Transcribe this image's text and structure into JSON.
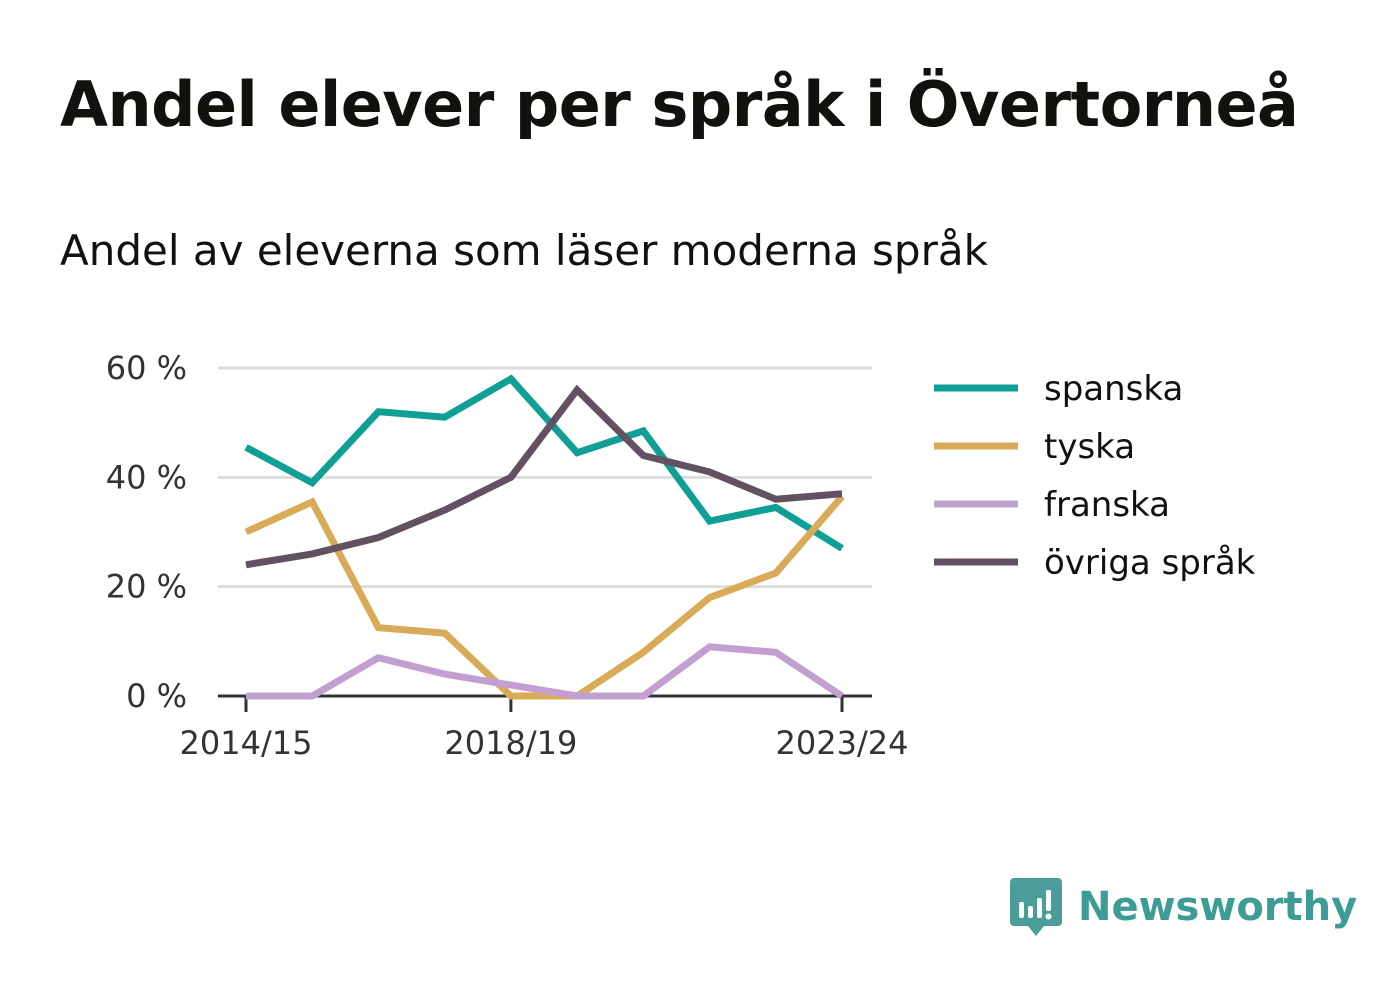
{
  "title": "Andel elever per språk i Övertorneå",
  "subtitle": "Andel av eleverna som läser moderna språk",
  "brand": {
    "name": "Newsworthy",
    "icon": "newsworthy-logo-icon",
    "color": "#3d9c96"
  },
  "chart_data": {
    "type": "line",
    "title": "Andel elever per språk i Övertorneå",
    "subtitle": "Andel av eleverna som läser moderna språk",
    "xlabel": "",
    "ylabel": "",
    "x": [
      "2014/15",
      "2015/16",
      "2016/17",
      "2017/18",
      "2018/19",
      "2019/20",
      "2020/21",
      "2021/22",
      "2022/23",
      "2023/24"
    ],
    "x_tick_labels": [
      "2014/15",
      "2018/19",
      "2023/24"
    ],
    "y_ticks": [
      0,
      20,
      40,
      60
    ],
    "y_tick_labels": [
      "0 %",
      "20 %",
      "40 %",
      "60 %"
    ],
    "ylim": [
      0,
      60
    ],
    "grid": true,
    "legend_position": "right",
    "series": [
      {
        "name": "spanska",
        "color": "#0f9f94",
        "values": [
          45.5,
          39,
          52,
          51,
          58,
          44.5,
          48.5,
          32,
          34.5,
          27
        ]
      },
      {
        "name": "tyska",
        "color": "#d9ab58",
        "values": [
          30,
          35.5,
          12.5,
          11.5,
          0,
          0,
          8,
          18,
          22.5,
          36.5
        ]
      },
      {
        "name": "franska",
        "color": "#c29fd0",
        "values": [
          0,
          0,
          7,
          4,
          2,
          0,
          0,
          9,
          8,
          0
        ]
      },
      {
        "name": "övriga språk",
        "color": "#625261",
        "values": [
          24,
          26,
          29,
          34,
          40,
          56,
          44,
          41,
          36,
          37
        ]
      }
    ]
  }
}
